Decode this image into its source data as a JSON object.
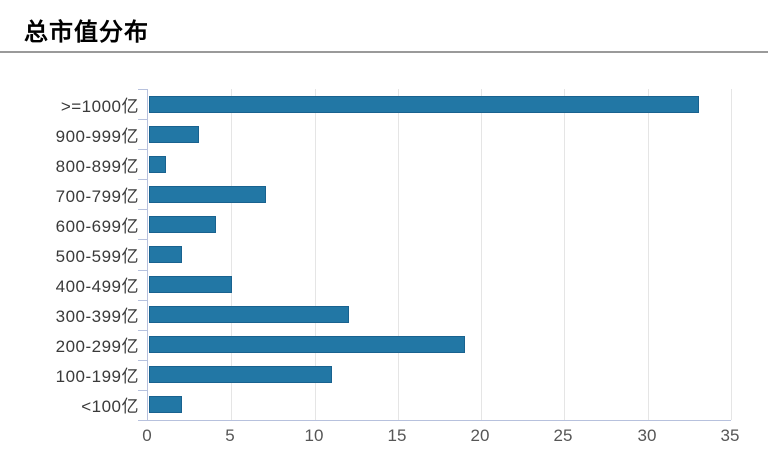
{
  "page": {
    "title": "总市值分布"
  },
  "colors": {
    "bar_fill": "#2277a5",
    "bar_border": "#19628f",
    "gridline": "#e5e5e5",
    "axis_line": "#b7c1dd",
    "category_label": "#3a3a3a",
    "tick_label": "#565656",
    "title_text": "#000000",
    "header_divider": "#9a9a9a"
  },
  "chart_data": {
    "type": "bar",
    "orientation": "horizontal",
    "title": "总市值分布",
    "categories": [
      ">=1000亿",
      "900-999亿",
      "800-899亿",
      "700-799亿",
      "600-699亿",
      "500-599亿",
      "400-499亿",
      "300-399亿",
      "200-299亿",
      "100-199亿",
      "<100亿"
    ],
    "values": [
      33,
      3,
      1,
      7,
      4,
      2,
      5,
      12,
      19,
      11,
      2
    ],
    "xlabel": "",
    "ylabel": "",
    "xlim": [
      0,
      35
    ],
    "xticks": [
      0,
      5,
      10,
      15,
      20,
      25,
      30,
      35
    ],
    "grid": true,
    "legend": false
  }
}
